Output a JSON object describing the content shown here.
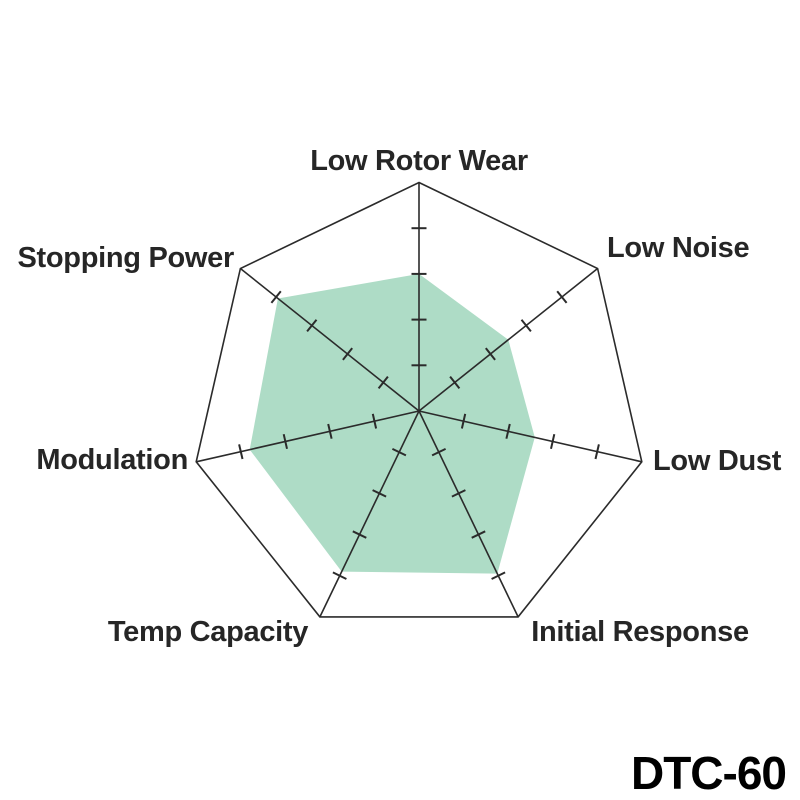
{
  "page": {
    "background_color": "#ffffff"
  },
  "title": {
    "text": "DTC-60",
    "color": "#000000"
  },
  "chart_data": {
    "type": "radar",
    "title": "DTC-60",
    "categories": [
      "Low Rotor Wear",
      "Low Noise",
      "Low Dust",
      "Initial Response",
      "Temp Capacity",
      "Modulation",
      "Stopping Power"
    ],
    "series": [
      {
        "name": "DTC-60",
        "values": [
          3.0,
          2.5,
          2.6,
          3.95,
          3.9,
          3.8,
          3.95
        ]
      }
    ],
    "scale": {
      "min": 0,
      "max": 5,
      "tick_step": 1,
      "ticks_drawn_per_axis": 4
    },
    "layout": {
      "start_angle_deg": -90,
      "direction": "clockwise",
      "axes_count": 7,
      "grid": "spokes-with-ticks",
      "legend": "none"
    },
    "style": {
      "fill_color": "#aedcc6",
      "axis_color": "#2b2b2b",
      "tick_color": "#2b2b2b",
      "label_color": "#262626"
    }
  }
}
